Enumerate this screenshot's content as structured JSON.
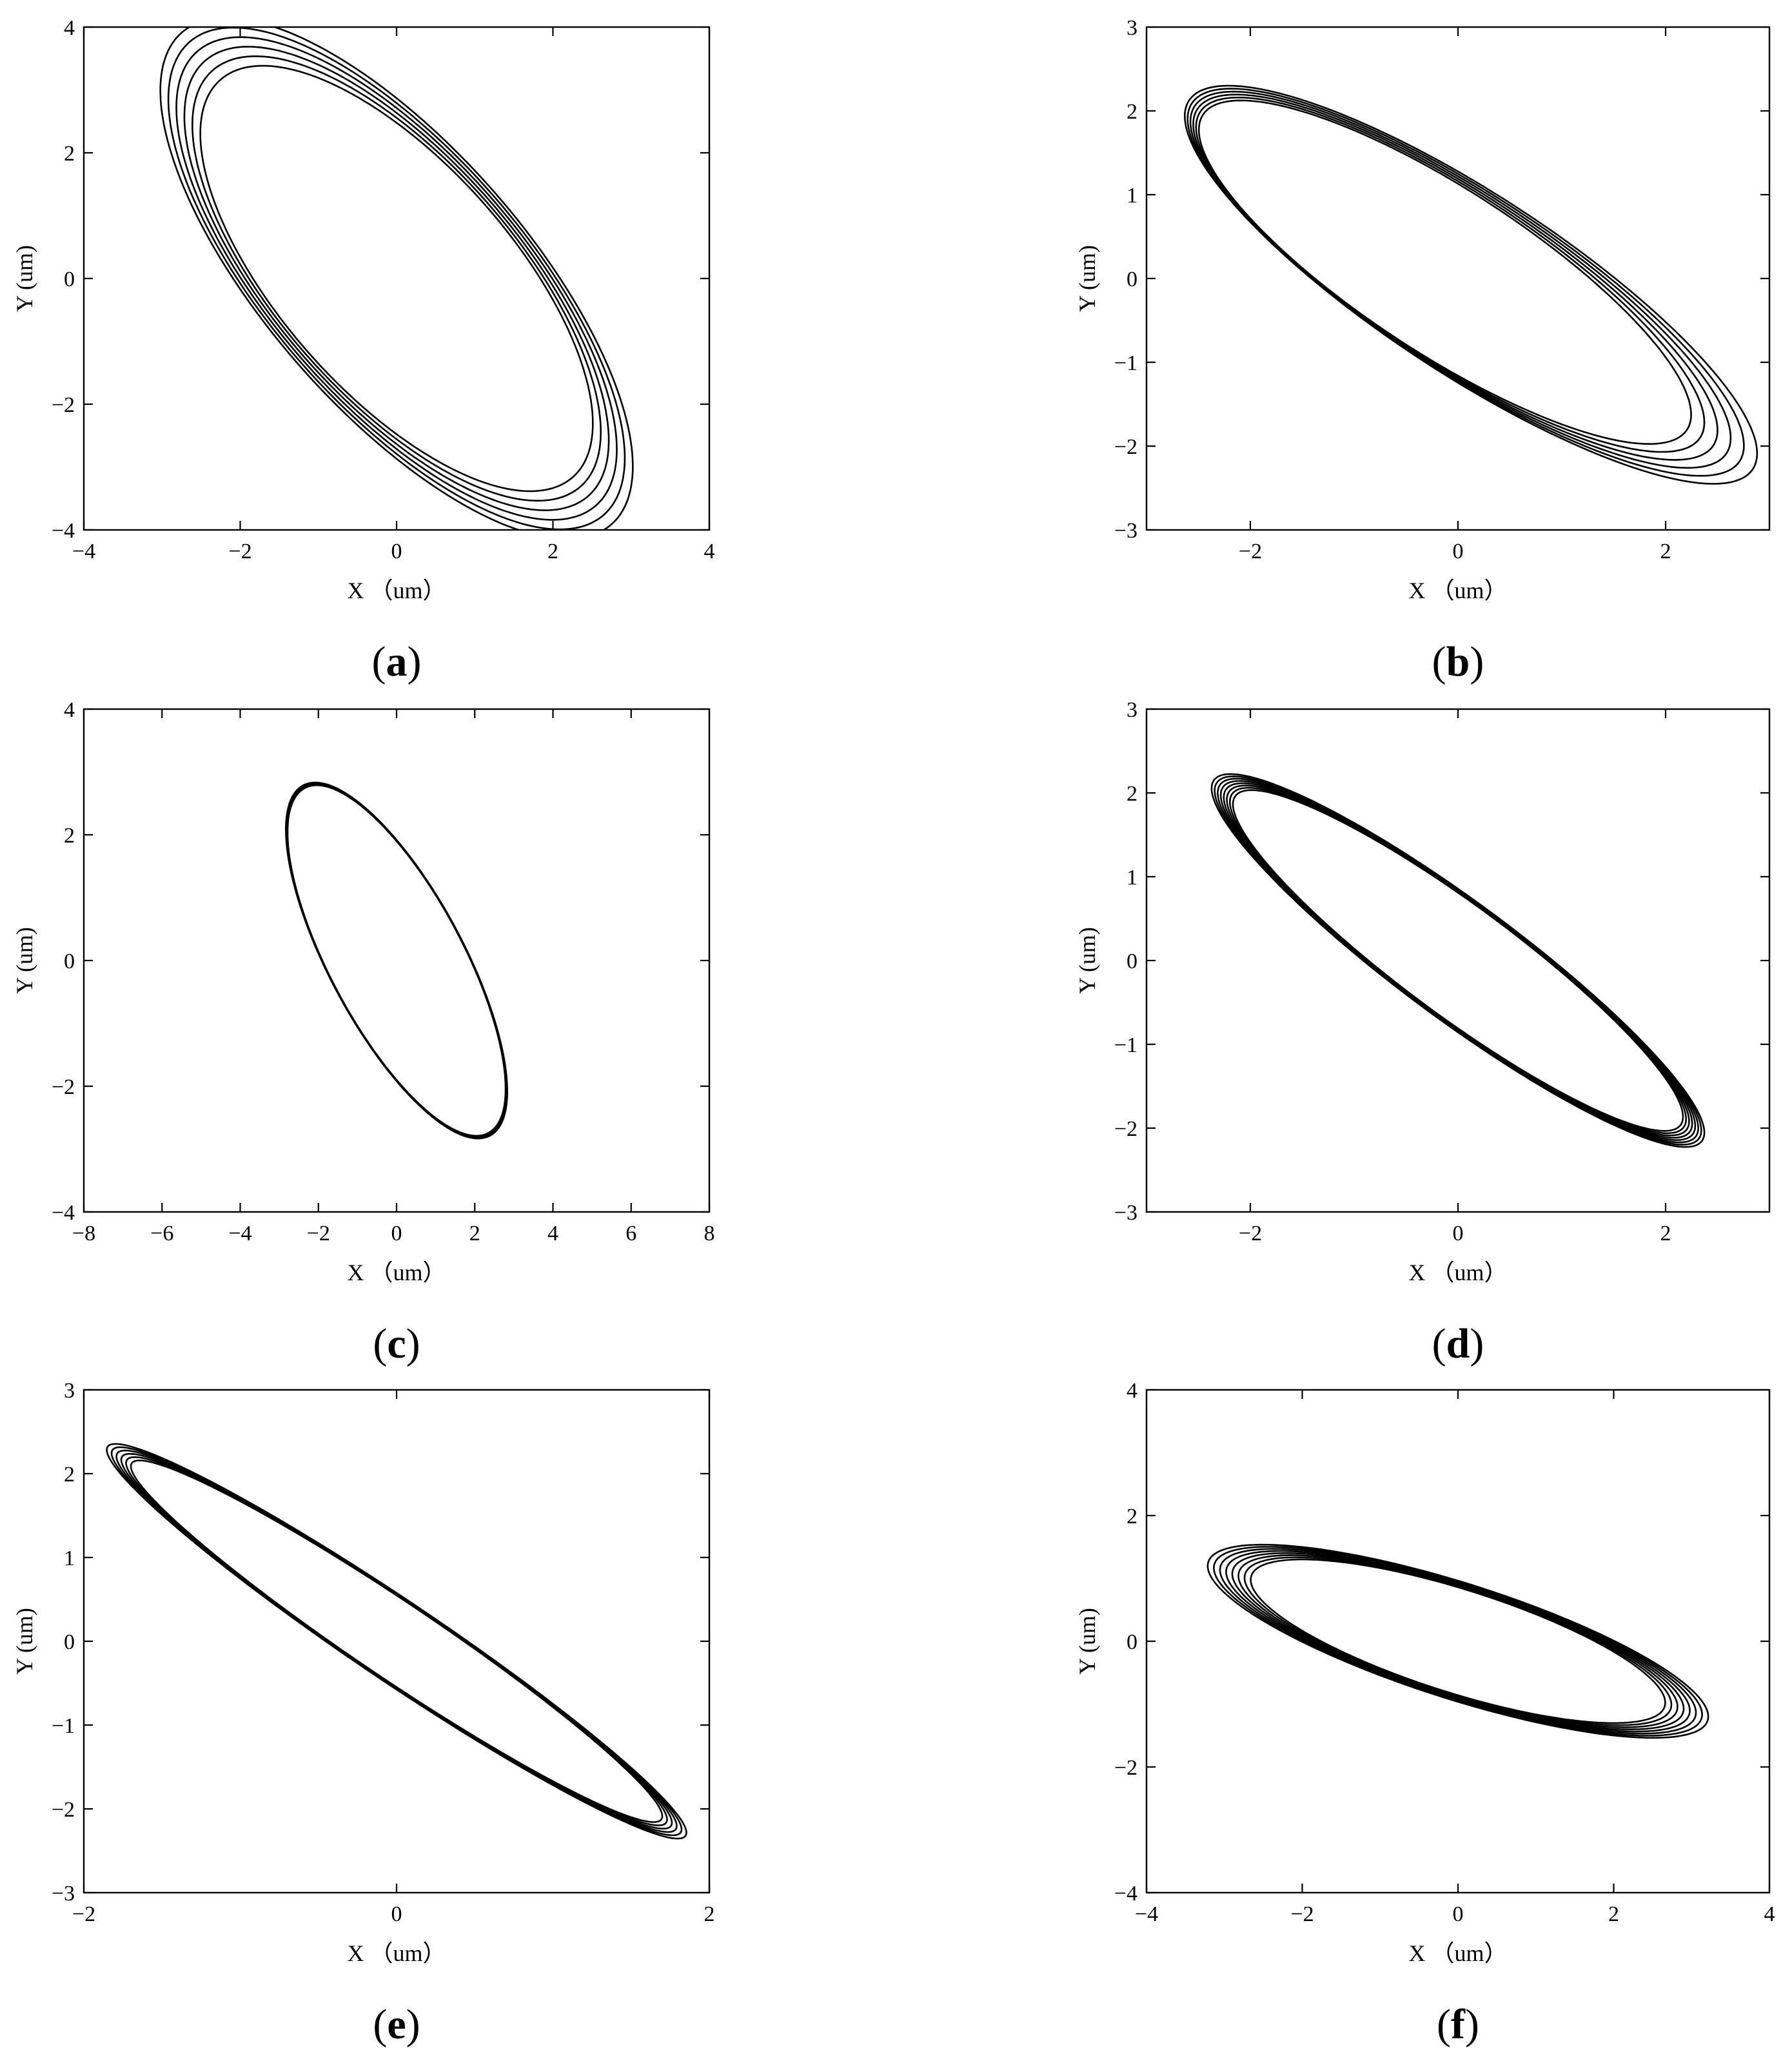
{
  "figure": {
    "panels_label_paren_open": "(",
    "panels_label_paren_close": ")"
  },
  "chart_data": [
    {
      "type": "line",
      "panel_label": "a",
      "xlabel": "X （um）",
      "ylabel": "Y (um)",
      "xlim": [
        -4,
        4
      ],
      "ylim": [
        -4,
        4
      ],
      "xticks": [
        -4,
        -2,
        0,
        2,
        4
      ],
      "yticks": [
        -4,
        -2,
        0,
        2,
        4
      ],
      "grid": false,
      "series": [
        {
          "orbit": {
            "a": 4.35,
            "b": 1.7,
            "angle_deg": -57,
            "cx": 0,
            "cy": 0,
            "loops": 6,
            "spread": 0.18,
            "drift": [
              0.0,
              0.0
            ]
          },
          "values": []
        }
      ]
    },
    {
      "type": "line",
      "panel_label": "b",
      "xlabel": "X （um）",
      "ylabel": "Y (um)",
      "xlim": [
        -3,
        3
      ],
      "ylim": [
        -3,
        3
      ],
      "xticks": [
        -2,
        0,
        2
      ],
      "yticks": [
        -3,
        -2,
        -1,
        0,
        1,
        2,
        3
      ],
      "grid": false,
      "series": [
        {
          "orbit": {
            "a": 3.25,
            "b": 0.95,
            "angle_deg": -40,
            "cx": 0,
            "cy": 0,
            "loops": 6,
            "spread": 0.1,
            "drift": [
              0.05,
              -0.03
            ]
          },
          "values": []
        }
      ]
    },
    {
      "type": "line",
      "panel_label": "c",
      "xlabel": "X （um）",
      "ylabel": "Y (um)",
      "xlim": [
        -8,
        8
      ],
      "ylim": [
        -4,
        4
      ],
      "xticks": [
        -8,
        -6,
        -4,
        -2,
        0,
        2,
        4,
        6,
        8
      ],
      "yticks": [
        -4,
        -2,
        0,
        2,
        4
      ],
      "grid": false,
      "series": [
        {
          "orbit": {
            "a": 3.7,
            "b": 1.45,
            "angle_deg": -45,
            "cx": 0,
            "cy": 0,
            "loops": 3,
            "spread": 0.03,
            "drift": [
              0.0,
              0.0
            ]
          },
          "values": []
        }
      ]
    },
    {
      "type": "line",
      "panel_label": "d",
      "xlabel": "X （um）",
      "ylabel": "Y (um)",
      "xlim": [
        -3,
        3
      ],
      "ylim": [
        -3,
        3
      ],
      "xticks": [
        -2,
        0,
        2
      ],
      "yticks": [
        -3,
        -2,
        -1,
        0,
        1,
        2,
        3
      ],
      "grid": false,
      "series": [
        {
          "orbit": {
            "a": 3.05,
            "b": 0.62,
            "angle_deg": -43,
            "cx": 0,
            "cy": 0,
            "loops": 8,
            "spread": 0.04,
            "drift": [
              0.0,
              0.0
            ]
          },
          "values": []
        }
      ]
    },
    {
      "type": "line",
      "panel_label": "e",
      "xlabel": "X （um）",
      "ylabel": "Y (um)",
      "xlim": [
        -2,
        2
      ],
      "ylim": [
        -3,
        3
      ],
      "xticks": [
        -2,
        0,
        2
      ],
      "yticks": [
        -3,
        -2,
        -1,
        0,
        1,
        2,
        3
      ],
      "grid": false,
      "series": [
        {
          "orbit": {
            "a": 2.85,
            "b": 0.35,
            "angle_deg": -52,
            "cx": 0,
            "cy": 0,
            "loops": 6,
            "spread": 0.05,
            "drift": [
              0.0,
              0.0
            ]
          },
          "values": []
        }
      ]
    },
    {
      "type": "line",
      "panel_label": "f",
      "xlabel": "X （um）",
      "ylabel": "Y (um)",
      "xlim": [
        -4,
        4
      ],
      "ylim": [
        -4,
        4
      ],
      "xticks": [
        -4,
        -2,
        0,
        2,
        4
      ],
      "yticks": [
        -4,
        -2,
        0,
        2,
        4
      ],
      "grid": false,
      "series": [
        {
          "orbit": {
            "a": 3.15,
            "b": 0.85,
            "angle_deg": -22,
            "cx": 0,
            "cy": 0,
            "loops": 8,
            "spread": 0.085,
            "drift": [
              0.0,
              0.0
            ]
          },
          "values": []
        }
      ]
    }
  ]
}
